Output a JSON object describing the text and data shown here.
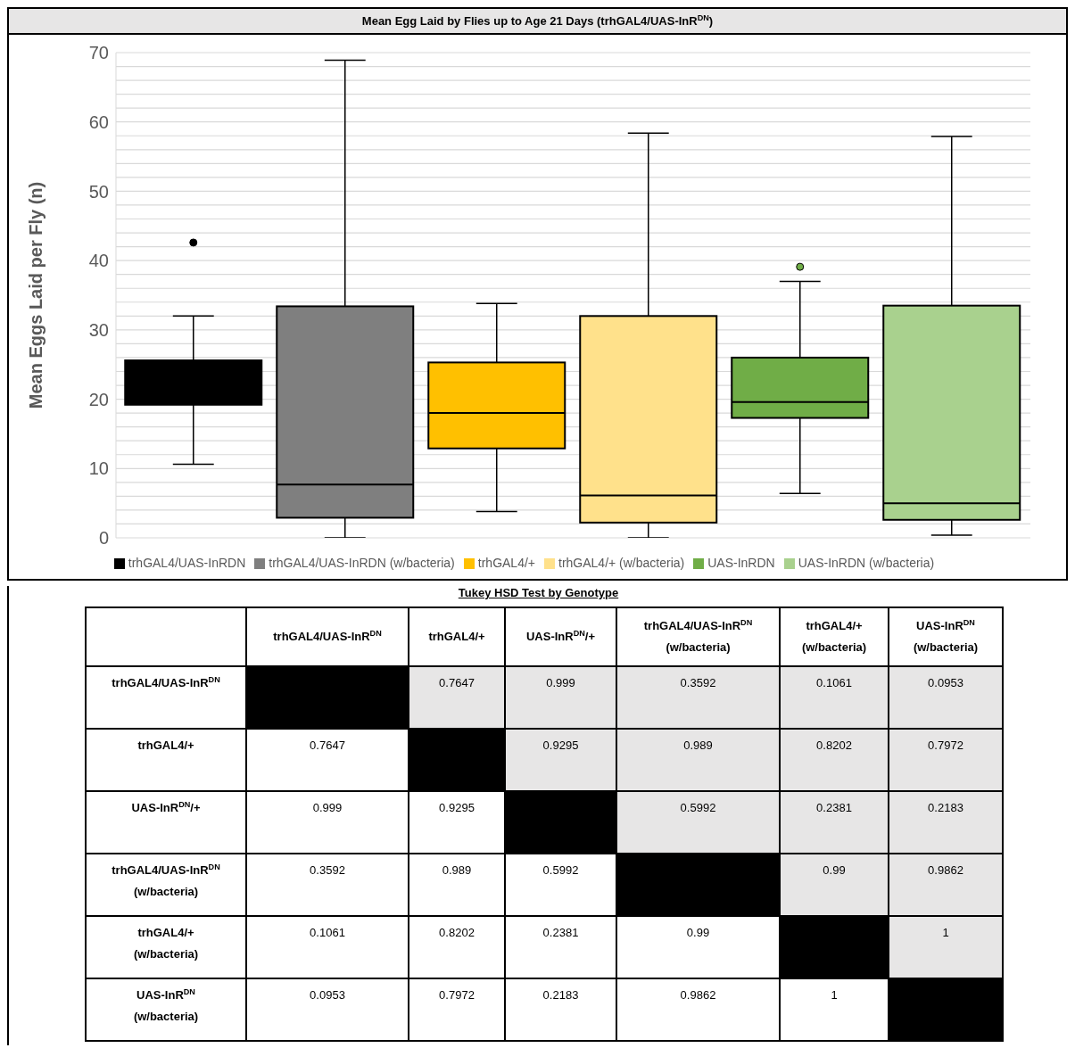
{
  "chart_data": [
    {
      "type": "box",
      "title": "Mean Egg Laid by Flies up to Age 21 Days (trhGAL4/UAS-InR$^{DN}$)",
      "ylabel": "Mean Eggs Laid per Fly (n)",
      "categories": [
        null
      ],
      "series": [
        {
          "name": "trhGAL4/UAS-InRDN",
          "color": "#000000",
          "boxes": [
            {
              "low": 10.6,
              "q1": 19.2,
              "median": 21.3,
              "q3": 25.6,
              "high": 32.0,
              "outliers": [
                42.6
              ]
            }
          ]
        },
        {
          "name": "trhGAL4/UAS-InRDN (w/bacteria)",
          "color": "#7f7f7f",
          "boxes": [
            {
              "low": 0,
              "q1": 2.9,
              "median": 7.7,
              "q3": 33.4,
              "high": 68.9
            }
          ]
        },
        {
          "name": "trhGAL4/+",
          "color": "#ffc000",
          "boxes": [
            {
              "low": 3.8,
              "q1": 12.9,
              "median": 18.0,
              "q3": 25.3,
              "high": 33.8
            }
          ]
        },
        {
          "name": "trhGAL4/+ (w/bacteria)",
          "color": "#ffe18b",
          "boxes": [
            {
              "low": 0,
              "q1": 2.2,
              "median": 6.1,
              "q3": 32.0,
              "high": 58.4
            }
          ]
        },
        {
          "name": "UAS-InRDN",
          "color": "#70ad47",
          "boxes": [
            {
              "low": 6.4,
              "q1": 17.3,
              "median": 19.6,
              "q3": 26.0,
              "high": 37.0,
              "outliers": [
                39.1
              ]
            }
          ]
        },
        {
          "name": "UAS-InRDN (w/bacteria)",
          "color": "#a9d18e",
          "boxes": [
            {
              "low": 0.4,
              "q1": 2.6,
              "median": 5.0,
              "q3": 33.5,
              "high": 57.9
            }
          ]
        }
      ],
      "ylim": [
        0,
        70
      ],
      "yticks": [
        0,
        {
          "value": 2,
          "label": null
        },
        {
          "value": 4,
          "label": null
        },
        {
          "value": 6,
          "label": null
        },
        {
          "value": 8,
          "label": null
        },
        10,
        {
          "value": 12,
          "label": null
        },
        {
          "value": 14,
          "label": null
        },
        {
          "value": 16,
          "label": null
        },
        {
          "value": 18,
          "label": null
        },
        20,
        {
          "value": 22,
          "label": null
        },
        {
          "value": 24,
          "label": null
        },
        {
          "value": 26,
          "label": null
        },
        {
          "value": 28,
          "label": null
        },
        30,
        {
          "value": 32,
          "label": null
        },
        {
          "value": 34,
          "label": null
        },
        {
          "value": 36,
          "label": null
        },
        {
          "value": 38,
          "label": null
        },
        40,
        {
          "value": 42,
          "label": null
        },
        {
          "value": 44,
          "label": null
        },
        {
          "value": 46,
          "label": null
        },
        {
          "value": 48,
          "label": null
        },
        50,
        {
          "value": 52,
          "label": null
        },
        {
          "value": 54,
          "label": null
        },
        {
          "value": 56,
          "label": null
        },
        {
          "value": 58,
          "label": null
        },
        60,
        {
          "value": 62,
          "label": null
        },
        {
          "value": 64,
          "label": null
        },
        {
          "value": 66,
          "label": null
        },
        {
          "value": 68,
          "label": null
        },
        70
      ],
      "grid": "y",
      "legend": "bottom"
    },
    {
      "type": "heatmap",
      "title": "Tukey HSD Test by Genotype",
      "data_labels": true,
      "categories": [
        "trhGAL4/UAS-InR$^{DN}$",
        "trhGAL4/+",
        "UAS-InR$^{DN}$/+",
        "trhGAL4/UAS-InR$^{DN}$ (w/bacteria)",
        "trhGAL4/+ (w/bacteria)",
        "UAS-InR$^{DN}$ (w/bacteria)"
      ],
      "y_categories": [
        "trhGAL4/UAS-InR$^{DN}$",
        "trhGAL4/+",
        "UAS-InR$^{DN}$/+",
        "trhGAL4/UAS-InR$^{DN}$ (w/bacteria)",
        "trhGAL4/+ (w/bacteria)",
        "UAS-InR$^{DN}$ (w/bacteria)"
      ],
      "cells": [
        [
          null,
          0.7647,
          0.999,
          0.3592,
          0.1061,
          0.0953
        ],
        [
          0.7647,
          null,
          0.9295,
          0.989,
          0.8202,
          0.7972
        ],
        [
          0.999,
          0.9295,
          null,
          0.5992,
          0.2381,
          0.2183
        ],
        [
          0.3592,
          0.989,
          0.5992,
          null,
          0.99,
          0.9862
        ],
        [
          0.1061,
          0.8202,
          0.2381,
          0.99,
          null,
          1
        ],
        [
          0.0953,
          0.7972,
          0.2183,
          0.9862,
          1,
          null
        ]
      ]
    }
  ]
}
